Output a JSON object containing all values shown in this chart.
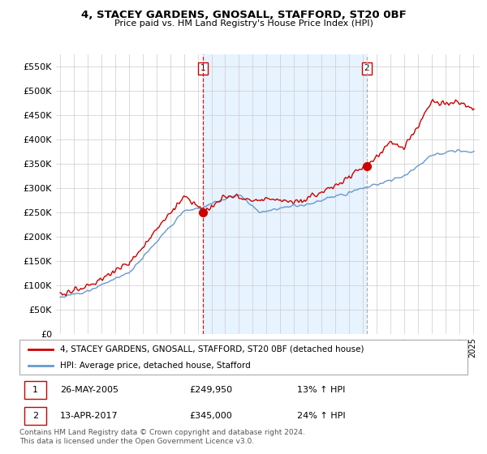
{
  "title": "4, STACEY GARDENS, GNOSALL, STAFFORD, ST20 0BF",
  "subtitle": "Price paid vs. HM Land Registry's House Price Index (HPI)",
  "legend_label_red": "4, STACEY GARDENS, GNOSALL, STAFFORD, ST20 0BF (detached house)",
  "legend_label_blue": "HPI: Average price, detached house, Stafford",
  "footer": "Contains HM Land Registry data © Crown copyright and database right 2024.\nThis data is licensed under the Open Government Licence v3.0.",
  "transaction1_label": "1",
  "transaction1_date": "26-MAY-2005",
  "transaction1_price": "£249,950",
  "transaction1_hpi": "13% ↑ HPI",
  "transaction2_label": "2",
  "transaction2_date": "13-APR-2017",
  "transaction2_price": "£345,000",
  "transaction2_hpi": "24% ↑ HPI",
  "vline1_x": 2005.38,
  "vline2_x": 2017.28,
  "marker1_red_y": 249950,
  "marker2_red_y": 345000,
  "ylim_min": 0,
  "ylim_max": 575000,
  "yticks": [
    0,
    50000,
    100000,
    150000,
    200000,
    250000,
    300000,
    350000,
    400000,
    450000,
    500000,
    550000
  ],
  "ytick_labels": [
    "£0",
    "£50K",
    "£100K",
    "£150K",
    "£200K",
    "£250K",
    "£300K",
    "£350K",
    "£400K",
    "£450K",
    "£500K",
    "£550K"
  ],
  "background_color": "#ffffff",
  "grid_color": "#cccccc",
  "red_color": "#cc0000",
  "blue_color": "#6699cc",
  "blue_fill_color": "#ddeeff",
  "vline1_color": "#cc0000",
  "vline2_color": "#aaaaaa",
  "xlim_min": 1994.7,
  "xlim_max": 2025.5
}
